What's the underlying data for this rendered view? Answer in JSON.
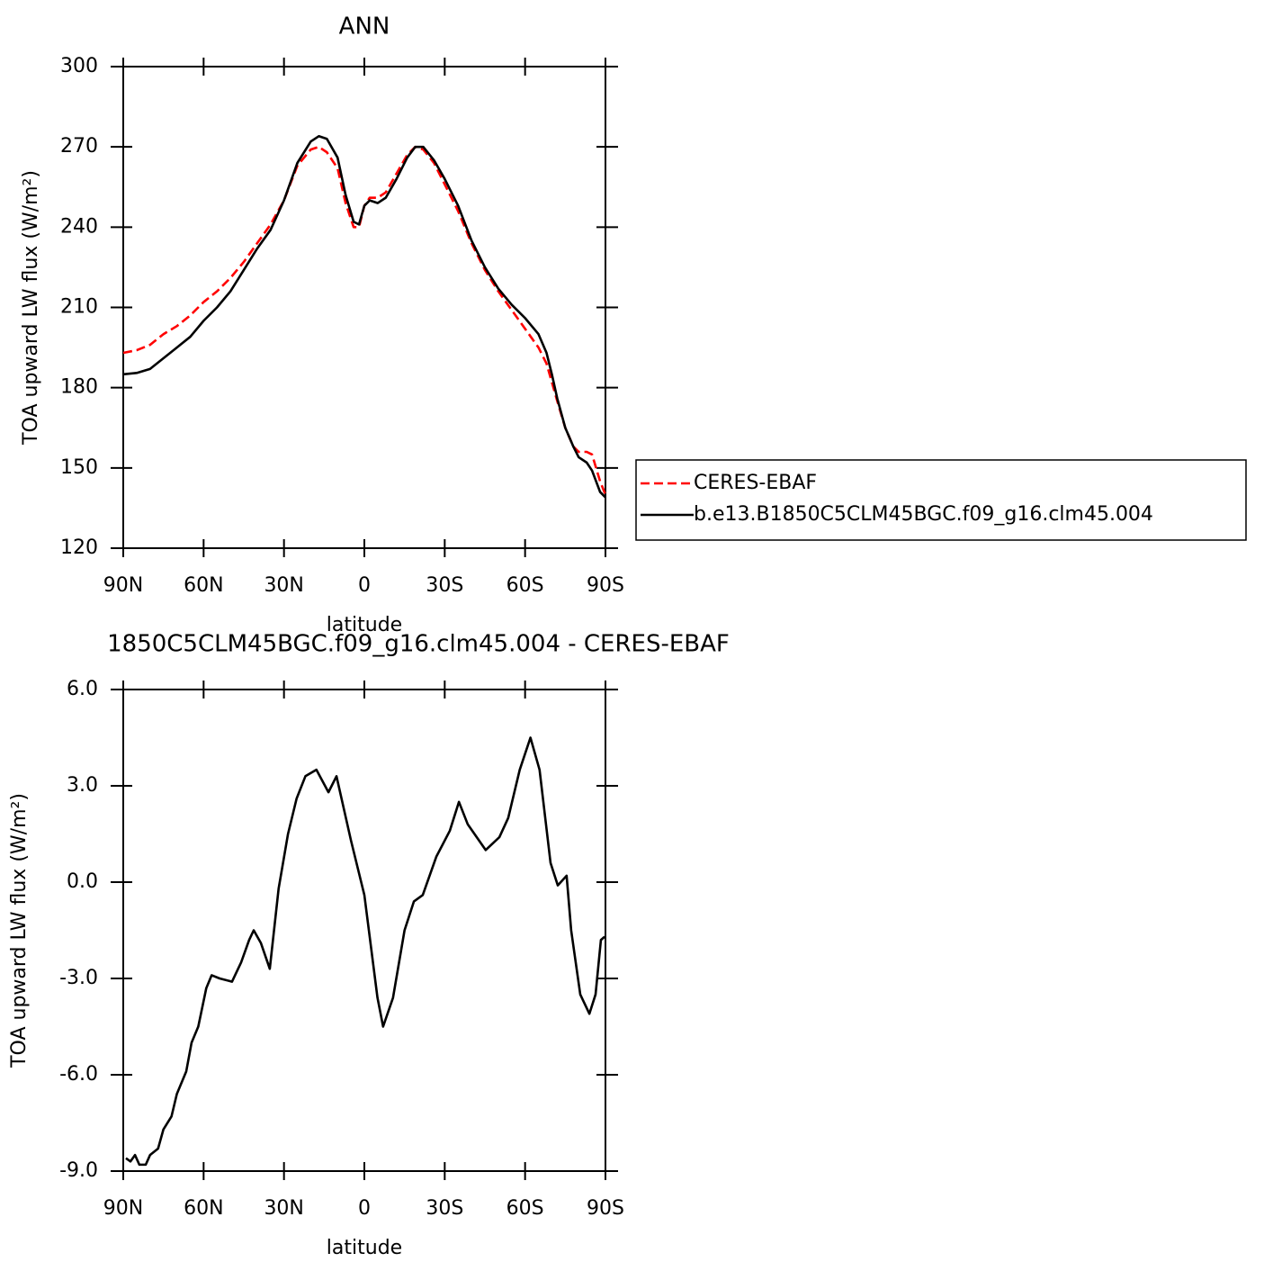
{
  "chart_data": [
    {
      "type": "line",
      "title": "ANN",
      "xlabel": "latitude",
      "ylabel": "TOA upward LW flux (W/m²)",
      "xlim": [
        90,
        -90
      ],
      "ylim": [
        120,
        300
      ],
      "xticks": [
        {
          "value": 90,
          "label": "90N"
        },
        {
          "value": 60,
          "label": "60N"
        },
        {
          "value": 30,
          "label": "30N"
        },
        0,
        {
          "value": -30,
          "label": "30S"
        },
        {
          "value": -60,
          "label": "60S"
        },
        {
          "value": -90,
          "label": "90S"
        }
      ],
      "yticks": [
        120,
        150,
        180,
        210,
        240,
        270,
        300
      ],
      "legend": "right",
      "x": [
        90,
        85,
        80,
        75,
        70,
        65,
        60,
        55,
        50,
        45,
        40,
        35,
        30,
        25,
        20,
        17,
        14,
        10,
        7,
        4,
        2,
        0,
        -2,
        -5,
        -8,
        -12,
        -16,
        -19,
        -22,
        -26,
        -30,
        -35,
        -40,
        -45,
        -50,
        -55,
        -60,
        -65,
        -68,
        -70,
        -72,
        -75,
        -78,
        -80,
        -83,
        -85,
        -88,
        -90
      ],
      "series": [
        {
          "name": "CERES-EBAF",
          "color": "#ff0000",
          "dash": true,
          "values": [
            193,
            194,
            196,
            200,
            203,
            207,
            212,
            216,
            221,
            227,
            234,
            241,
            250,
            263,
            269,
            270,
            268,
            262,
            249,
            240,
            240,
            248,
            251,
            251,
            253,
            260,
            267,
            270,
            269,
            264,
            256,
            246,
            234,
            224,
            216,
            209,
            202,
            195,
            189,
            182,
            175,
            165,
            158,
            156,
            156,
            155,
            145,
            140
          ]
        },
        {
          "name": "b.e13.B1850C5CLM45BGC.f09_g16.clm45.004",
          "color": "#000000",
          "dash": false,
          "values": [
            185,
            185.5,
            187,
            191,
            195,
            199,
            205,
            210,
            216,
            224,
            232,
            239,
            250,
            264,
            272,
            274,
            273,
            266,
            252,
            242,
            241,
            248,
            250,
            249,
            251,
            258,
            266,
            270,
            270,
            265,
            258,
            248,
            235,
            225,
            217,
            211,
            206,
            200,
            193,
            185,
            176,
            165,
            158,
            154,
            152,
            149,
            141,
            139
          ]
        }
      ]
    },
    {
      "type": "line",
      "title": "1850C5CLM45BGC.f09_g16.clm45.004 - CERES-EBAF",
      "xlabel": "latitude",
      "ylabel": "TOA upward LW flux (W/m²)",
      "xlim": [
        90,
        -90
      ],
      "ylim": [
        -9,
        6
      ],
      "xticks": [
        {
          "value": 90,
          "label": "90N"
        },
        {
          "value": 60,
          "label": "60N"
        },
        {
          "value": 30,
          "label": "30N"
        },
        0,
        {
          "value": -30,
          "label": "30S"
        },
        {
          "value": -60,
          "label": "60S"
        },
        {
          "value": -90,
          "label": "90S"
        }
      ],
      "yticks": [
        {
          "value": -9,
          "label": "-9.0"
        },
        {
          "value": -6,
          "label": "-6.0"
        },
        {
          "value": -3,
          "label": "-3.0"
        },
        {
          "value": 0,
          "label": "0.0"
        },
        {
          "value": 3,
          "label": "3.0"
        },
        {
          "value": 6,
          "label": "6.0"
        }
      ],
      "x": [
        89,
        87.3,
        85.6,
        84,
        81.6,
        80,
        77,
        75,
        72,
        70,
        66.5,
        64.5,
        62,
        59,
        57,
        54,
        49.4,
        46,
        43,
        41.3,
        38.6,
        35.3,
        32,
        28.5,
        25.3,
        22,
        17.9,
        13.4,
        10.4,
        5,
        0,
        -4.9,
        -7,
        -10.7,
        -15,
        -18.5,
        -21.8,
        -26.9,
        -31.9,
        -35.3,
        -38.6,
        -45.3,
        -50.4,
        -53.7,
        -58,
        -62,
        -65.4,
        -69.5,
        -72.2,
        -75.5,
        -77.2,
        -80.6,
        -84,
        -86.3,
        -88.3,
        -89.7
      ],
      "series": [
        {
          "color": "#000000",
          "dash": false,
          "values": [
            -8.6,
            -8.7,
            -8.5,
            -8.8,
            -8.8,
            -8.5,
            -8.3,
            -7.7,
            -7.3,
            -6.6,
            -5.9,
            -5.0,
            -4.5,
            -3.3,
            -2.9,
            -3.0,
            -3.1,
            -2.5,
            -1.8,
            -1.5,
            -1.9,
            -2.7,
            -0.2,
            1.5,
            2.6,
            3.3,
            3.5,
            2.8,
            3.3,
            1.3,
            -0.4,
            -3.6,
            -4.5,
            -3.6,
            -1.5,
            -0.6,
            -0.4,
            0.8,
            1.6,
            2.5,
            1.8,
            1.0,
            1.4,
            2.0,
            3.5,
            4.5,
            3.5,
            0.6,
            -0.1,
            0.2,
            -1.5,
            -3.5,
            -4.1,
            -3.5,
            -1.8,
            -1.7
          ]
        }
      ]
    }
  ]
}
